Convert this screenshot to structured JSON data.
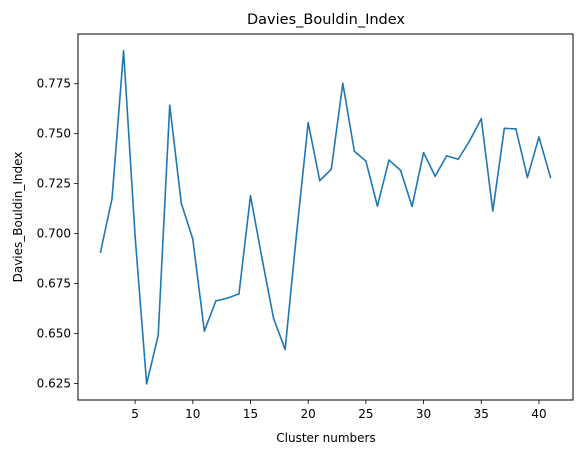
{
  "chart_data": {
    "type": "line",
    "title": "Davies_Bouldin_Index",
    "xlabel": "Cluster numbers",
    "ylabel": "Davies_Bouldin_Index",
    "xlim": [
      0.05,
      42.95
    ],
    "ylim": [
      0.6167,
      0.7999
    ],
    "xticks": [
      5,
      10,
      15,
      20,
      25,
      30,
      35,
      40
    ],
    "yticks": [
      0.625,
      0.65,
      0.675,
      0.7,
      0.725,
      0.75,
      0.775
    ],
    "ytick_labels": [
      "0.625",
      "0.650",
      "0.675",
      "0.700",
      "0.725",
      "0.750",
      "0.775"
    ],
    "grid": false,
    "series": [
      {
        "color": "#1f77b4",
        "x": [
          2,
          3,
          4,
          5,
          6,
          7,
          8,
          9,
          10,
          11,
          12,
          13,
          14,
          15,
          16,
          17,
          18,
          19,
          20,
          21,
          22,
          23,
          24,
          25,
          26,
          27,
          28,
          29,
          30,
          31,
          32,
          33,
          34,
          35,
          36,
          37,
          38,
          39,
          40,
          41
        ],
        "y": [
          0.6907,
          0.7175,
          0.7915,
          0.6985,
          0.6248,
          0.649,
          0.7643,
          0.7152,
          0.6972,
          0.6512,
          0.6663,
          0.6677,
          0.6698,
          0.7189,
          0.6875,
          0.6575,
          0.642,
          0.7004,
          0.7555,
          0.7265,
          0.7322,
          0.7752,
          0.7412,
          0.7363,
          0.7138,
          0.7368,
          0.7317,
          0.7136,
          0.7405,
          0.7287,
          0.7389,
          0.7372,
          0.7465,
          0.7575,
          0.7113,
          0.7527,
          0.7524,
          0.7281,
          0.7483,
          0.7281
        ]
      }
    ]
  }
}
